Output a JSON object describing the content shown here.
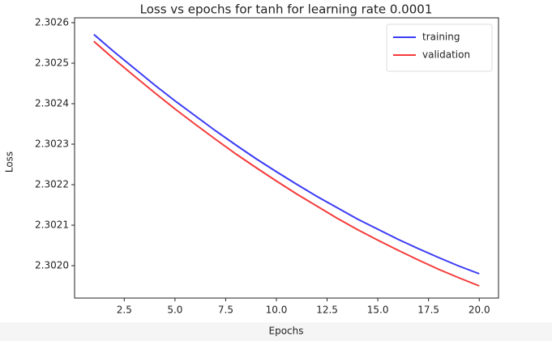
{
  "chart_data": {
    "type": "line",
    "title": "Loss vs epochs for tanh for learning rate 0.0001",
    "x_label": "Epochs",
    "y_label": "Loss",
    "x": [
      1,
      2,
      3,
      4,
      5,
      6,
      7,
      8,
      9,
      10,
      11,
      12,
      13,
      14,
      15,
      16,
      17,
      18,
      19,
      20
    ],
    "series": [
      {
        "name": "training",
        "color": "#3b3bf5",
        "values": [
          2.302571,
          2.302528,
          2.302487,
          2.302446,
          2.302407,
          2.30237,
          2.302333,
          2.302298,
          2.302264,
          2.302232,
          2.302201,
          2.302171,
          2.302143,
          2.302115,
          2.30209,
          2.302065,
          2.302042,
          2.30202,
          2.301999,
          2.30198
        ]
      },
      {
        "name": "validation",
        "color": "#f53b3b",
        "values": [
          2.302554,
          2.30251,
          2.302468,
          2.302427,
          2.302387,
          2.302349,
          2.302312,
          2.302276,
          2.302242,
          2.302209,
          2.302177,
          2.302147,
          2.302117,
          2.302089,
          2.302063,
          2.302038,
          2.302014,
          2.301991,
          2.30197,
          2.30195
        ]
      }
    ],
    "xlim": [
      0.05,
      20.95
    ],
    "xticks": [
      2.5,
      {
        "value": 5,
        "label": "5.0"
      },
      7.5,
      {
        "value": 10,
        "label": "10.0"
      },
      12.5,
      {
        "value": 15,
        "label": "15.0"
      },
      17.5,
      {
        "value": 20,
        "label": "20.0"
      }
    ],
    "ylim": [
      2.30192,
      2.302612
    ],
    "yticks": [
      {
        "value": 2.302,
        "label": "2.3020"
      },
      2.3021,
      2.3022,
      2.3023,
      2.3024,
      2.3025,
      2.3026
    ],
    "legend": "upper right"
  }
}
